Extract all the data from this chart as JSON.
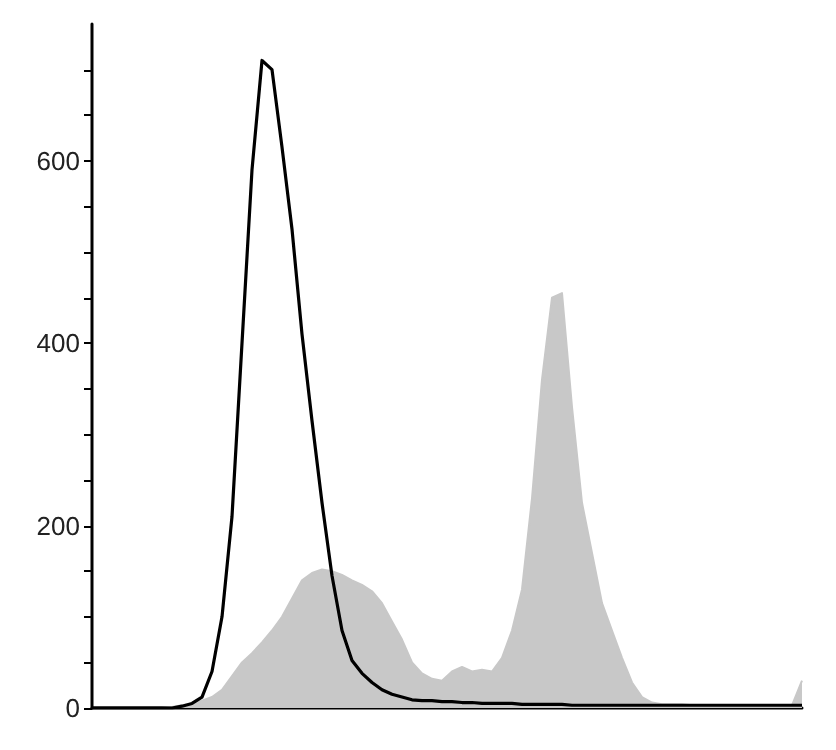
{
  "chart_data": {
    "type": "area",
    "categories": [
      null,
      null,
      null,
      null,
      null,
      null,
      null,
      null,
      null,
      null,
      null,
      null,
      null,
      null,
      null,
      null,
      null,
      null,
      null,
      null,
      null,
      null,
      null,
      null,
      null,
      null,
      null,
      null,
      null,
      null,
      null,
      null,
      null,
      null,
      null,
      null,
      null,
      null,
      null,
      null,
      null,
      null,
      null,
      null,
      null,
      null,
      null,
      null,
      null,
      null,
      null,
      null,
      null,
      null,
      null,
      null,
      null,
      null,
      null,
      null,
      null,
      null,
      null,
      null,
      null,
      null,
      null,
      null,
      null,
      null,
      null,
      null
    ],
    "series": [
      {
        "color": "#c8c8c8",
        "values": [
          0,
          0,
          0,
          0,
          0,
          0,
          0,
          0,
          1,
          3,
          5,
          8,
          12,
          20,
          35,
          50,
          60,
          72,
          85,
          100,
          120,
          140,
          148,
          152,
          150,
          146,
          140,
          135,
          128,
          115,
          95,
          75,
          50,
          38,
          32,
          30,
          40,
          45,
          40,
          42,
          40,
          55,
          85,
          130,
          230,
          360,
          450,
          455,
          330,
          225,
          170,
          115,
          85,
          55,
          28,
          12,
          6,
          4,
          4,
          4,
          3,
          3,
          3,
          3,
          3,
          3,
          3,
          3,
          3,
          3,
          3,
          30
        ]
      },
      {
        "type": "line",
        "color": "#000000",
        "values": [
          0,
          0,
          0,
          0,
          0,
          0,
          0,
          0,
          0,
          2,
          5,
          12,
          40,
          100,
          210,
          400,
          590,
          710,
          700,
          615,
          525,
          410,
          315,
          225,
          145,
          85,
          52,
          38,
          28,
          20,
          15,
          12,
          9,
          8,
          8,
          7,
          7,
          6,
          6,
          5,
          5,
          5,
          5,
          4,
          4,
          4,
          4,
          4,
          3,
          3,
          3,
          3,
          3,
          3,
          3,
          3,
          3,
          3,
          3,
          3,
          3,
          3,
          3,
          3,
          3,
          3,
          3,
          3,
          3,
          3,
          3,
          3
        ]
      }
    ],
    "ylim": [
      0,
      750
    ],
    "yticks": [
      0,
      {
        "value": 50,
        "label": null
      },
      {
        "value": 100,
        "label": null
      },
      {
        "value": 150,
        "label": null
      },
      200,
      {
        "value": 250,
        "label": null
      },
      {
        "value": 300,
        "label": null
      },
      {
        "value": 350,
        "label": null
      },
      400,
      {
        "value": 450,
        "label": null
      },
      {
        "value": 500,
        "label": null
      },
      {
        "value": 550,
        "label": null
      },
      600,
      {
        "value": 650,
        "label": null
      },
      {
        "value": 700,
        "label": null
      }
    ],
    "grid": false,
    "tick_labels": "y"
  }
}
